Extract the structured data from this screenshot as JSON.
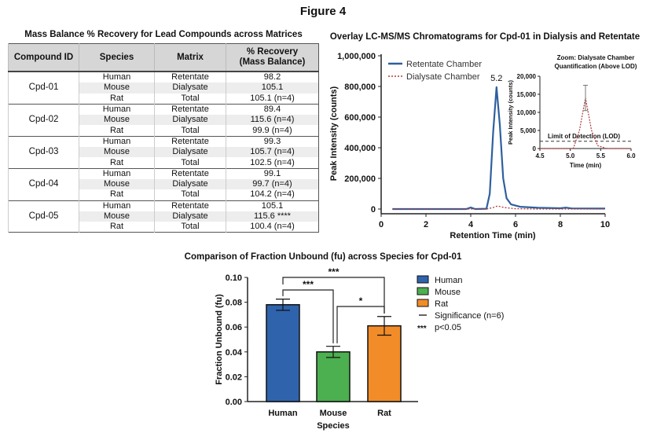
{
  "figure_title": "Figure 4",
  "table": {
    "title": "Mass Balance % Recovery for Lead Compounds across Matrices",
    "headers": [
      "Compound ID",
      "Species",
      "Matrix",
      "% Recovery",
      "(Mass Balance)"
    ],
    "groups": [
      {
        "id": "Cpd-01",
        "rows": [
          [
            "Human",
            "Retentate",
            "98.2"
          ],
          [
            "Mouse",
            "Dialysate",
            "105.1"
          ],
          [
            "Rat",
            "Total",
            "105.1 (n=4)"
          ]
        ]
      },
      {
        "id": "Cpd-02",
        "rows": [
          [
            "Human",
            "Retentate",
            "89.4"
          ],
          [
            "Mouse",
            "Dialysate",
            "115.6 (n=4)"
          ],
          [
            "Rat",
            "Total",
            "99.9 (n=4)"
          ]
        ]
      },
      {
        "id": "Cpd-03",
        "rows": [
          [
            "Human",
            "Retentate",
            "99.3"
          ],
          [
            "Mouse",
            "Dialysate",
            "105.7 (n=4)"
          ],
          [
            "Rat",
            "Total",
            "102.5 (n=4)"
          ]
        ]
      },
      {
        "id": "Cpd-04",
        "rows": [
          [
            "Human",
            "Retentate",
            "99.1"
          ],
          [
            "Mouse",
            "Dialysate",
            "99.7 (n=4)"
          ],
          [
            "Rat",
            "Total",
            "104.2 (n=4)"
          ]
        ]
      },
      {
        "id": "Cpd-05",
        "rows": [
          [
            "Human",
            "Retentate",
            "105.1"
          ],
          [
            "Mouse",
            "Dialysate",
            "115.6 ****"
          ],
          [
            "Rat",
            "Total",
            "100.4 (n=4)"
          ]
        ]
      }
    ]
  },
  "chart_data": [
    {
      "type": "line",
      "title": "Overlay LC-MS/MS Chromatograms for Cpd-01 in Dialysis and Retentate",
      "xlabel": "Retention Time (min)",
      "ylabel": "Peak Intensity (counts)",
      "xlim": [
        0,
        10
      ],
      "ylim": [
        0,
        1000000
      ],
      "xticks": [
        "0",
        "2",
        "4",
        "6",
        "8",
        "10"
      ],
      "yticks": [
        "0",
        "200,000",
        "400,000",
        "600,000",
        "800,000",
        "1,000,000"
      ],
      "legend_position": "top-left",
      "annotation": "5.2",
      "series": [
        {
          "name": "Retentate Chamber",
          "color": "#2f5f9e",
          "style": "solid",
          "points": [
            [
              0.5,
              0
            ],
            [
              3.8,
              0
            ],
            [
              4.0,
              10000
            ],
            [
              4.2,
              0
            ],
            [
              4.7,
              2000
            ],
            [
              4.85,
              100000
            ],
            [
              5.0,
              500000
            ],
            [
              5.15,
              795000
            ],
            [
              5.3,
              550000
            ],
            [
              5.45,
              200000
            ],
            [
              5.6,
              70000
            ],
            [
              5.8,
              30000
            ],
            [
              6.2,
              15000
            ],
            [
              7,
              8000
            ],
            [
              8,
              5000
            ],
            [
              8.25,
              9000
            ],
            [
              8.5,
              4000
            ],
            [
              10,
              3000
            ]
          ]
        },
        {
          "name": "Dialysate Chamber",
          "color": "#b03a3a",
          "style": "dotted",
          "points": [
            [
              0.5,
              0
            ],
            [
              4.7,
              0
            ],
            [
              5.0,
              10000
            ],
            [
              5.2,
              20000
            ],
            [
              5.5,
              10000
            ],
            [
              6.0,
              2000
            ],
            [
              7,
              0
            ],
            [
              10,
              0
            ]
          ]
        }
      ],
      "inset": {
        "title": [
          "Zoom: Dialysate Chamber",
          "Quantification (Above LOD)"
        ],
        "xlabel": "Time (min)",
        "ylabel": "Peak Intensity (counts)",
        "xlim": [
          4.5,
          6.0
        ],
        "ylim": [
          0,
          20000
        ],
        "xticks": [
          "4.5",
          "5.0",
          "5.5",
          "6.0"
        ],
        "yticks": [
          "0",
          "5,000",
          "10,000",
          "15,000",
          "20,000"
        ],
        "lod_label": "Limit of Detection (LOD)",
        "lod_value": 2000,
        "peak": {
          "x": 5.25,
          "y": 14000,
          "err_low": 10500,
          "err_high": 17500
        },
        "points": [
          [
            4.5,
            0
          ],
          [
            5.05,
            0
          ],
          [
            5.15,
            5000
          ],
          [
            5.25,
            14000
          ],
          [
            5.35,
            5000
          ],
          [
            5.45,
            800
          ],
          [
            5.6,
            0
          ],
          [
            6.0,
            0
          ]
        ]
      }
    },
    {
      "type": "bar",
      "title": "Comparison of Fraction Unbound (fu) across Species for Cpd-01",
      "xlabel": "Species",
      "ylabel": "Fraction Unbound (fu)",
      "ylim": [
        0,
        0.1
      ],
      "yticks": [
        "0.00",
        "0.02",
        "0.04",
        "0.06",
        "0.08",
        "0.10"
      ],
      "categories": [
        "Human",
        "Mouse",
        "Rat"
      ],
      "values": [
        0.078,
        0.04,
        0.061
      ],
      "errors": [
        0.0045,
        0.0045,
        0.0075
      ],
      "colors": [
        "#2f64ad",
        "#4caf50",
        "#f28c28"
      ],
      "significance": [
        {
          "from": "Human",
          "to": "Rat",
          "label": "***"
        },
        {
          "from": "Human",
          "to": "Mouse",
          "label": "***"
        },
        {
          "from": "Mouse",
          "to": "Rat",
          "label": "*"
        }
      ],
      "legend_position": "right",
      "legend": [
        "Human",
        "Mouse",
        "Rat",
        "Significance (n=6)",
        "p<0.05"
      ],
      "legend_star": "***"
    }
  ]
}
